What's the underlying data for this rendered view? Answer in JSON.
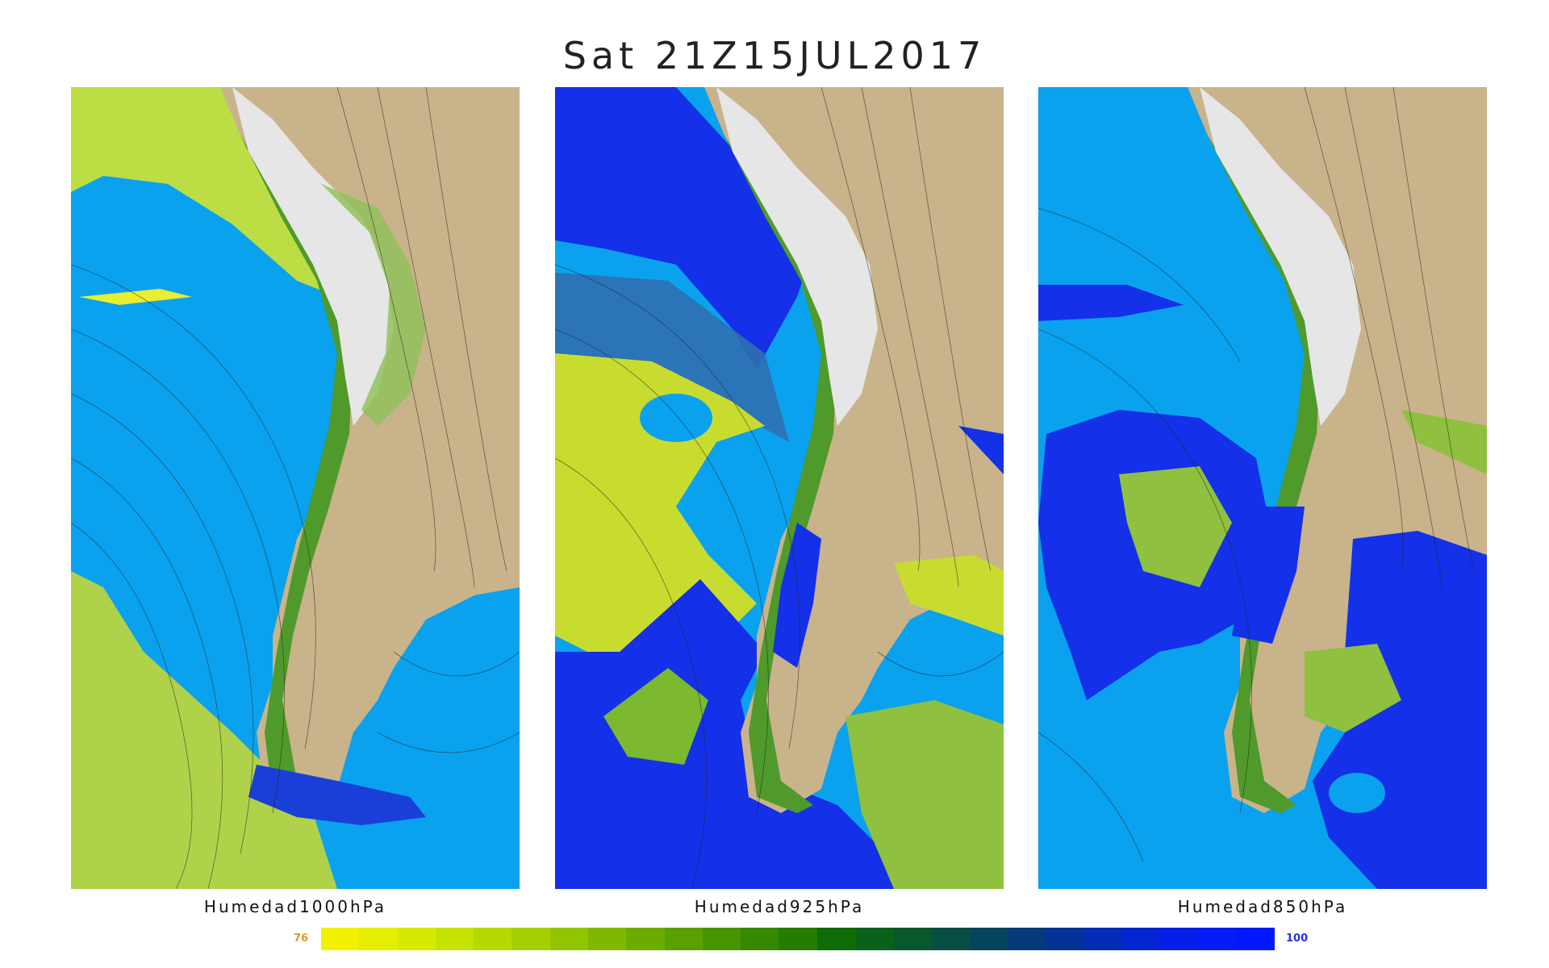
{
  "title": "Sat 21Z15JUL2017",
  "panels": [
    {
      "label": "Humedad1000hPa",
      "level": "1000hPa",
      "humid_cover": "low"
    },
    {
      "label": "Humedad925hPa",
      "level": "925hPa",
      "humid_cover": "high"
    },
    {
      "label": "Humedad850hPa",
      "level": "850hPa",
      "humid_cover": "medium"
    }
  ],
  "colorbar": {
    "min_label": "76",
    "max_label": "100",
    "colors": [
      "#f2f200",
      "#e4ee00",
      "#d6ea00",
      "#c6e200",
      "#b6da00",
      "#a4d000",
      "#92c400",
      "#80b800",
      "#6cac00",
      "#5aa000",
      "#489400",
      "#368800",
      "#247c00",
      "#0e6c06",
      "#0a621a",
      "#08582e",
      "#064e44",
      "#06445c",
      "#063a78",
      "#053296",
      "#042cb4",
      "#0426d0",
      "#0420e6",
      "#041cf6",
      "#0418ff"
    ]
  },
  "colors": {
    "ocean": "#0aa2ee",
    "land": "#c9b38a",
    "andes_snow": "#e6e6e6",
    "green_low": "#9ccf4a",
    "green_dark": "#3f8f1f",
    "yellow": "#e4ec1a",
    "blue_high": "#1430e8"
  }
}
